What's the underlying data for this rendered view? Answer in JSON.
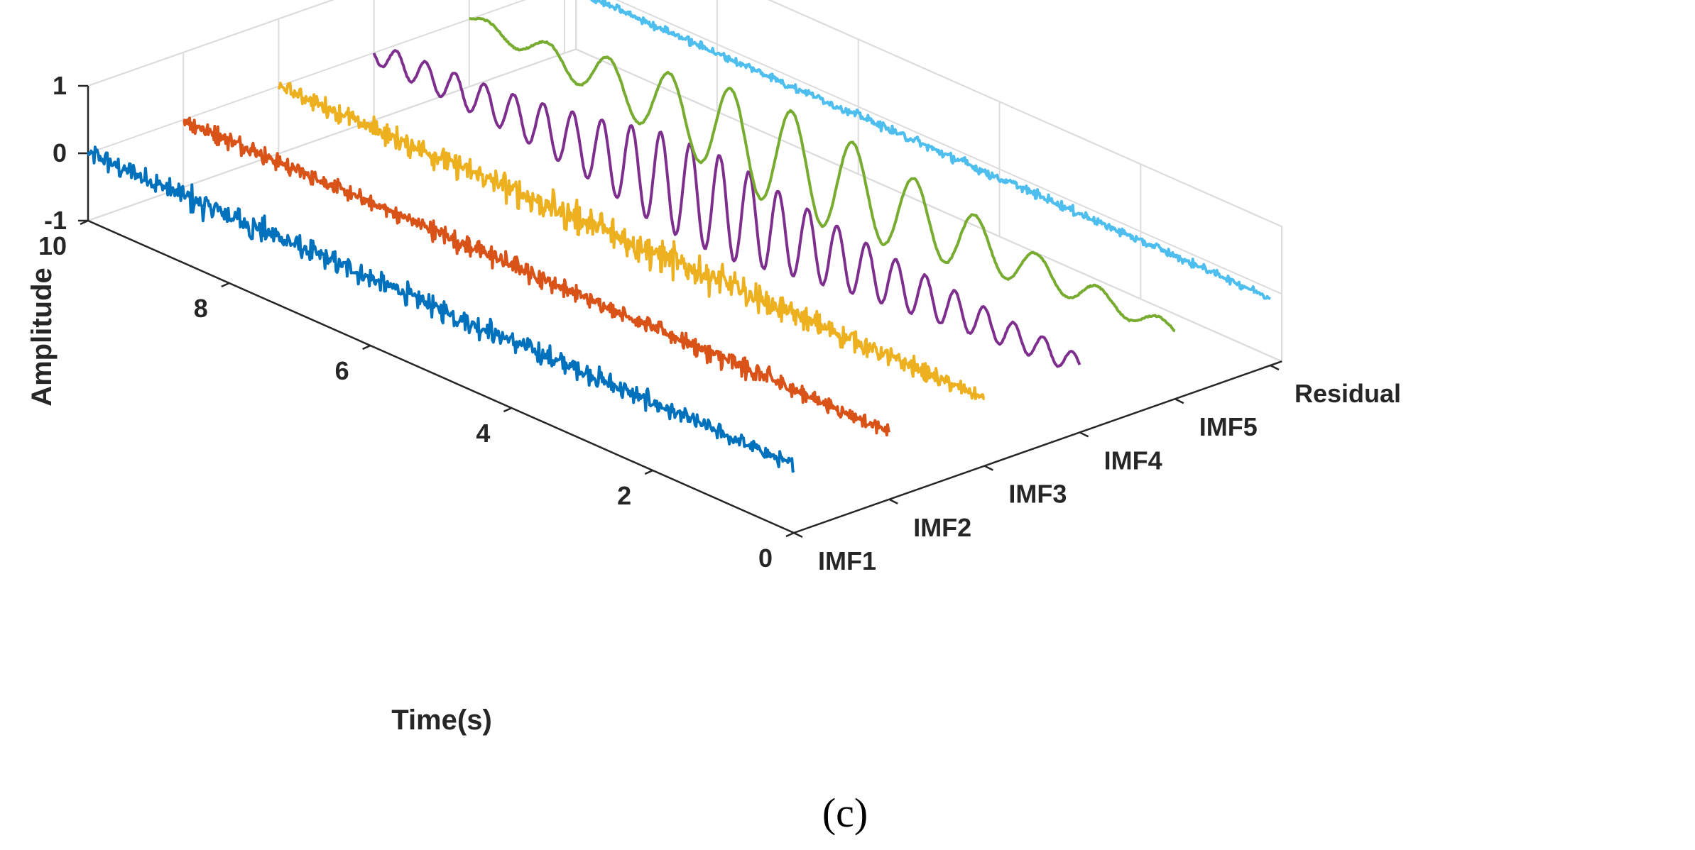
{
  "chart_data": {
    "type": "line",
    "view": "3d-waterfall",
    "title": "",
    "caption": "(c)",
    "xlabel": "",
    "ylabel": "Time(s)",
    "zlabel": "Amplitude",
    "xlim": [
      0,
      5
    ],
    "ylim": [
      0,
      10
    ],
    "zlim": [
      -1,
      1
    ],
    "grid": true,
    "categories": [
      "IMF1",
      "IMF2",
      "IMF3",
      "IMF4",
      "IMF5",
      "Residual"
    ],
    "time_ticks": [
      "0",
      "2",
      "4",
      "6",
      "8",
      "10"
    ],
    "amplitude_ticks": [
      "-1",
      "0",
      "1"
    ],
    "series": [
      {
        "name": "IMF1",
        "color": "#0072BD",
        "envelope_t": [
          0,
          1,
          2,
          3,
          4,
          5,
          6,
          7,
          8,
          9,
          10
        ],
        "envelope_amp": [
          0.12,
          0.15,
          0.18,
          0.2,
          0.22,
          0.2,
          0.2,
          0.22,
          0.28,
          0.22,
          0.18
        ],
        "offset": 0.0,
        "description": "high-frequency noise"
      },
      {
        "name": "IMF2",
        "color": "#D95319",
        "envelope_t": [
          0,
          1,
          2,
          3,
          4,
          5,
          6,
          7,
          8,
          9,
          10
        ],
        "envelope_amp": [
          0.1,
          0.12,
          0.22,
          0.15,
          0.12,
          0.18,
          0.2,
          0.14,
          0.14,
          0.16,
          0.18
        ],
        "offset": 0.0,
        "description": "high-frequency noise"
      },
      {
        "name": "IMF3",
        "color": "#EDB120",
        "envelope_t": [
          0,
          1,
          2,
          3,
          4,
          5,
          6,
          7,
          8,
          9,
          10
        ],
        "envelope_amp": [
          0.1,
          0.18,
          0.2,
          0.25,
          0.3,
          0.32,
          0.28,
          0.25,
          0.22,
          0.18,
          0.12
        ],
        "offset": 0.0,
        "description": "mid-frequency oscillation"
      },
      {
        "name": "IMF4",
        "color": "#7E2F8E",
        "envelope_t": [
          0,
          1,
          2,
          3,
          4,
          5,
          6,
          7,
          8,
          9,
          10
        ],
        "envelope_amp": [
          0.15,
          0.2,
          0.3,
          0.4,
          0.55,
          0.75,
          0.7,
          0.45,
          0.3,
          0.22,
          0.15
        ],
        "offset": 0.0,
        "description": "amplitude-modulated oscillation"
      },
      {
        "name": "IMF5",
        "color": "#77AC30",
        "envelope_t": [
          0,
          1,
          2,
          3,
          4,
          5,
          6,
          7,
          8,
          9,
          10
        ],
        "envelope_amp": [
          0.1,
          0.15,
          0.25,
          0.45,
          0.6,
          0.75,
          0.75,
          0.55,
          0.35,
          0.15,
          0.08
        ],
        "offset": 0.0,
        "description": "low-frequency amplitude-modulated oscillation"
      },
      {
        "name": "Residual",
        "color": "#4DBEEE",
        "envelope_t": [
          0,
          1,
          2,
          3,
          4,
          5,
          6,
          7,
          8,
          9,
          10
        ],
        "envelope_amp": [
          0.06,
          0.07,
          0.08,
          0.08,
          0.09,
          0.08,
          0.08,
          0.08,
          0.07,
          0.07,
          0.06
        ],
        "offset": 0.0,
        "description": "small-amplitude noise"
      }
    ]
  }
}
